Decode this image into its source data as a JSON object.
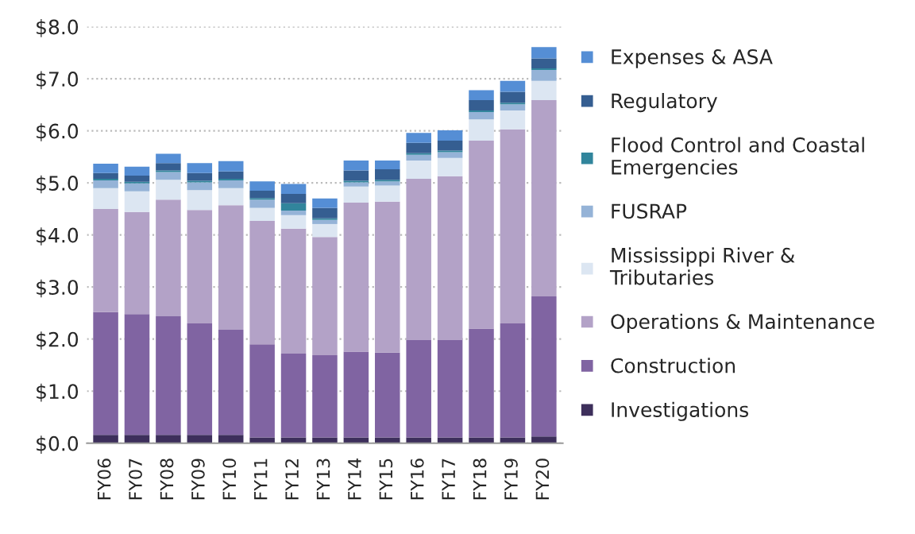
{
  "chart_data": {
    "type": "bar",
    "stacked": true,
    "categories": [
      "FY06",
      "FY07",
      "FY08",
      "FY09",
      "FY10",
      "FY11",
      "FY12",
      "FY13",
      "FY14",
      "FY15",
      "FY16",
      "FY17",
      "FY18",
      "FY19",
      "FY20"
    ],
    "series": [
      {
        "name": "Investigations",
        "color": "#3d2f5b",
        "values": [
          0.16,
          0.16,
          0.16,
          0.16,
          0.16,
          0.11,
          0.11,
          0.11,
          0.11,
          0.11,
          0.11,
          0.11,
          0.11,
          0.11,
          0.13
        ]
      },
      {
        "name": "Construction",
        "color": "#8064a2",
        "values": [
          2.36,
          2.32,
          2.28,
          2.14,
          2.02,
          1.79,
          1.61,
          1.58,
          1.65,
          1.63,
          1.87,
          1.87,
          2.09,
          2.19,
          2.69
        ]
      },
      {
        "name": "Operations & Maintenance",
        "color": "#b3a2c7",
        "values": [
          1.98,
          1.96,
          2.24,
          2.18,
          2.39,
          2.37,
          2.4,
          2.27,
          2.86,
          2.9,
          3.1,
          3.15,
          3.61,
          3.73,
          3.77
        ]
      },
      {
        "name": "Mississippi River &\nTributaries",
        "color": "#dce6f2",
        "values": [
          0.4,
          0.4,
          0.38,
          0.38,
          0.33,
          0.25,
          0.26,
          0.25,
          0.31,
          0.31,
          0.35,
          0.35,
          0.41,
          0.36,
          0.37
        ]
      },
      {
        "name": "FUSRAP",
        "color": "#95b3d7",
        "values": [
          0.15,
          0.15,
          0.15,
          0.15,
          0.15,
          0.16,
          0.09,
          0.08,
          0.08,
          0.08,
          0.11,
          0.11,
          0.14,
          0.12,
          0.21
        ]
      },
      {
        "name": "Flood Control and Coastal\nEmergencies",
        "color": "#31859c",
        "values": [
          0.03,
          0.03,
          0.03,
          0.03,
          0.03,
          0.03,
          0.14,
          0.03,
          0.03,
          0.03,
          0.03,
          0.03,
          0.03,
          0.03,
          0.03
        ]
      },
      {
        "name": "Regulatory",
        "color": "#355e91",
        "values": [
          0.11,
          0.12,
          0.14,
          0.15,
          0.14,
          0.14,
          0.18,
          0.2,
          0.2,
          0.2,
          0.2,
          0.19,
          0.2,
          0.21,
          0.19
        ]
      },
      {
        "name": "Expenses & ASA",
        "color": "#558ed5",
        "values": [
          0.18,
          0.17,
          0.18,
          0.19,
          0.2,
          0.18,
          0.19,
          0.18,
          0.19,
          0.17,
          0.19,
          0.2,
          0.19,
          0.21,
          0.22
        ]
      }
    ],
    "ylim": [
      0,
      8
    ],
    "yticks": [
      {
        "value": 0,
        "label": "$0.0"
      },
      {
        "value": 1,
        "label": "$1.0"
      },
      {
        "value": 2,
        "label": "$2.0"
      },
      {
        "value": 3,
        "label": "$3.0"
      },
      {
        "value": 4,
        "label": "$4.0"
      },
      {
        "value": 5,
        "label": "$5.0"
      },
      {
        "value": 6,
        "label": "$6.0"
      },
      {
        "value": 7,
        "label": "$7.0"
      },
      {
        "value": 8,
        "label": "$8.0"
      }
    ],
    "grid": "y",
    "legend": "right"
  }
}
